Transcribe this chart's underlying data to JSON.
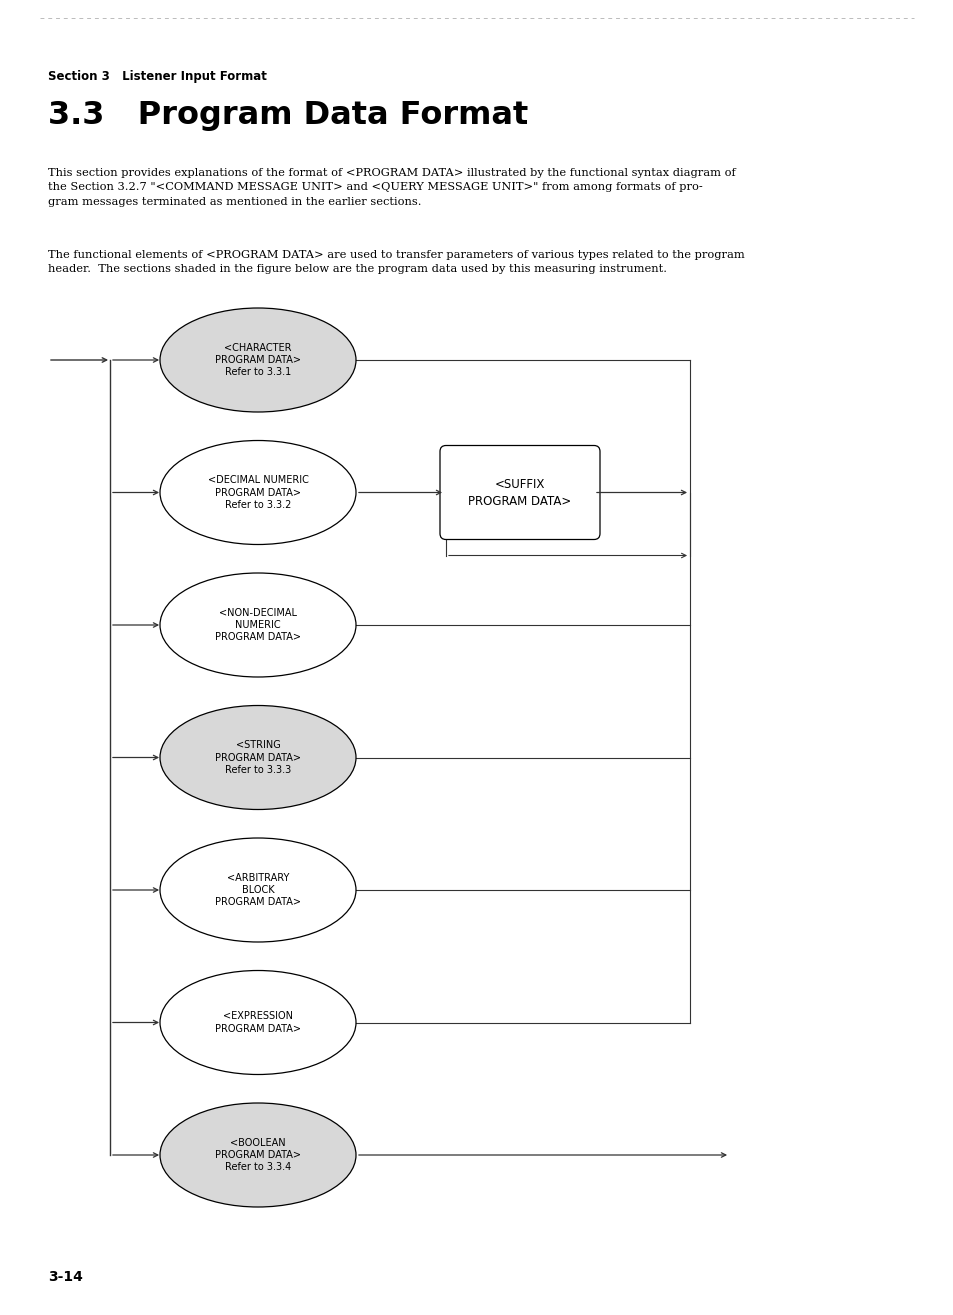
{
  "section_label": "Section 3   Listener Input Format",
  "title": "3.3   Program Data Format",
  "page_number": "3-14",
  "body_text_1": "This section provides explanations of the format of <PROGRAM DATA> illustrated by the functional syntax diagram of\nthe Section 3.2.7 \"<COMMAND MESSAGE UNIT> and <QUERY MESSAGE UNIT>\" from among formats of pro-\ngram messages terminated as mentioned in the earlier sections.",
  "body_text_2": "The functional elements of <PROGRAM DATA> are used to transfer parameters of various types related to the program\nheader.  The sections shaded in the figure below are the program data used by this measuring instrument.",
  "ellipse_labels": [
    "<CHARACTER\nPROGRAM DATA>\nRefer to 3.3.1",
    "<DECIMAL NUMERIC\nPROGRAM DATA>\nRefer to 3.3.2",
    "<NON-DECIMAL\nNUMERIC\nPROGRAM DATA>",
    "<STRING\nPROGRAM DATA>\nRefer to 3.3.3",
    "<ARBITRARY\nBLOCK\nPROGRAM DATA>",
    "<EXPRESSION\nPROGRAM DATA>",
    "<BOOLEAN\nPROGRAM DATA>\nRefer to 3.3.4"
  ],
  "ellipse_shaded": [
    true,
    false,
    false,
    true,
    false,
    false,
    true
  ],
  "suffix_label": "<SUFFIX\nPROGRAM DATA>",
  "bg_color": "#ffffff",
  "ellipse_fill": "#d8d8d8",
  "ellipse_nofill": "#ffffff",
  "top_line_color": "#aaaaaa",
  "diagram_line_color": "#333333"
}
